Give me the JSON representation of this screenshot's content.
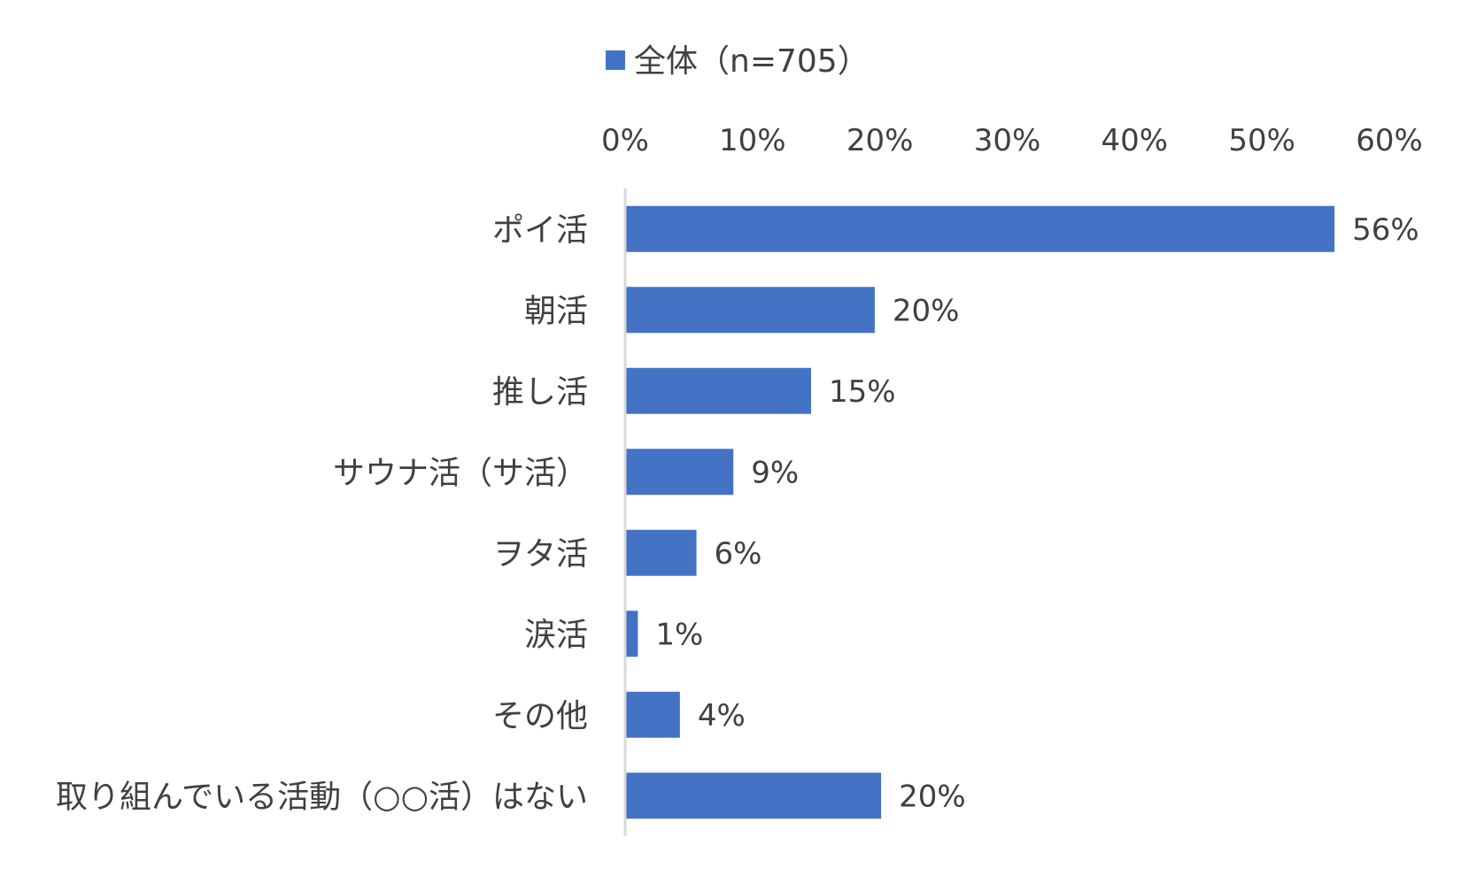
{
  "chart_data": {
    "type": "bar",
    "orientation": "horizontal",
    "legend": {
      "position": "top",
      "entries": [
        {
          "name": "全体（n=705）",
          "color": "#4472C4"
        }
      ]
    },
    "xaxis": {
      "position": "top",
      "range": [
        0,
        60
      ],
      "step": 10,
      "tick_labels": [
        "0%",
        "10%",
        "20%",
        "30%",
        "40%",
        "50%",
        "60%"
      ]
    },
    "grid": false,
    "categories": [
      "ポイ活",
      "朝活",
      "推し活",
      "サウナ活（サ活）",
      "ヲタ活",
      "涙活",
      "その他",
      "取り組んでいる活動（○○活）はない"
    ],
    "series": [
      {
        "name": "全体（n=705）",
        "color": "#4472C4",
        "values": [
          55.7,
          19.6,
          14.6,
          8.5,
          5.6,
          1.0,
          4.3,
          20.1
        ],
        "data_labels": [
          "56%",
          "20%",
          "15%",
          "9%",
          "6%",
          "1%",
          "4%",
          "20%"
        ]
      }
    ]
  }
}
